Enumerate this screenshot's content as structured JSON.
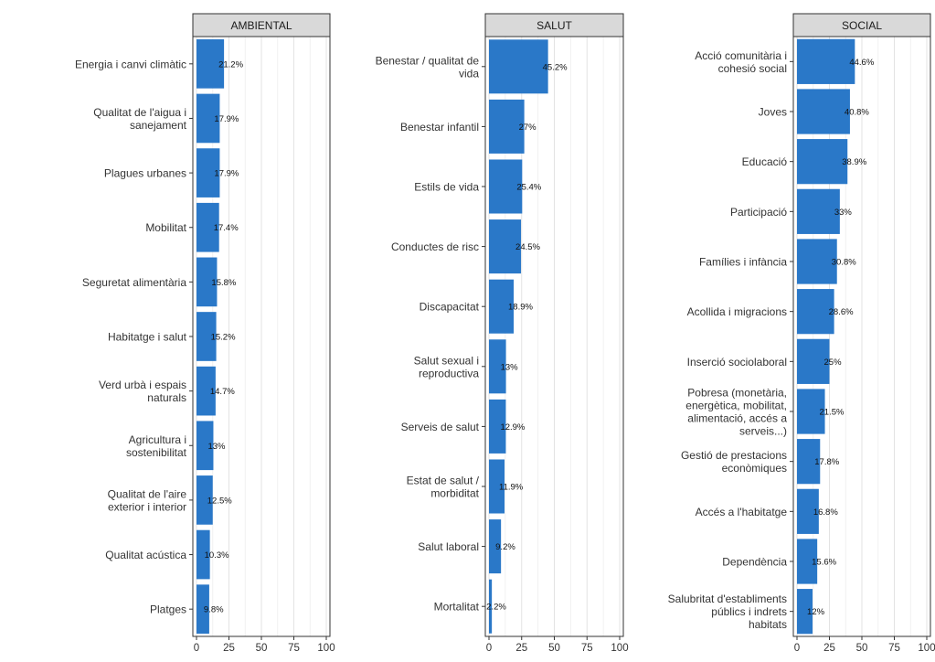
{
  "chart_data": [
    {
      "type": "bar",
      "orientation": "horizontal",
      "facet": "AMBIENTAL",
      "categories": [
        "Energia i canvi climàtic",
        "Qualitat de l'aigua i sanejament",
        "Plagues urbanes",
        "Mobilitat",
        "Seguretat alimentària",
        "Habitatge i salut",
        "Verd urbà i espais naturals",
        "Agricultura i sostenibilitat",
        "Qualitat de l'aire exterior i interior",
        "Qualitat acústica",
        "Platges"
      ],
      "category_lines": [
        [
          "Energia i canvi climàtic"
        ],
        [
          "Qualitat de l'aigua i",
          "sanejament"
        ],
        [
          "Plagues urbanes"
        ],
        [
          "Mobilitat"
        ],
        [
          "Seguretat alimentària"
        ],
        [
          "Habitatge i salut"
        ],
        [
          "Verd urbà i espais",
          "naturals"
        ],
        [
          "Agricultura i",
          "sostenibilitat"
        ],
        [
          "Qualitat de l'aire",
          "exterior i interior"
        ],
        [
          "Qualitat acústica"
        ],
        [
          "Platges"
        ]
      ],
      "values": [
        21.2,
        17.9,
        17.9,
        17.4,
        15.8,
        15.2,
        14.7,
        13,
        12.5,
        10.3,
        9.8
      ],
      "value_labels": [
        "21.2%",
        "17.9%",
        "17.9%",
        "17.4%",
        "15.8%",
        "15.2%",
        "14.7%",
        "13%",
        "12.5%",
        "10.3%",
        "9.8%"
      ],
      "xlim": [
        0,
        100
      ],
      "xticks": [
        0,
        25,
        50,
        75,
        100
      ],
      "xtick_labels": [
        "0",
        "25",
        "50",
        "75",
        "100"
      ]
    },
    {
      "type": "bar",
      "orientation": "horizontal",
      "facet": "SALUT",
      "categories": [
        "Benestar / qualitat de vida",
        "Benestar infantil",
        "Estils de vida",
        "Conductes de risc",
        "Discapacitat",
        "Salut sexual i reproductiva",
        "Serveis de salut",
        "Estat de salut / morbiditat",
        "Salut laboral",
        "Mortalitat"
      ],
      "category_lines": [
        [
          "Benestar / qualitat de",
          "vida"
        ],
        [
          "Benestar infantil"
        ],
        [
          "Estils de vida"
        ],
        [
          "Conductes de risc"
        ],
        [
          "Discapacitat"
        ],
        [
          "Salut sexual i",
          "reproductiva"
        ],
        [
          "Serveis de salut"
        ],
        [
          "Estat de salut /",
          "morbiditat"
        ],
        [
          "Salut laboral"
        ],
        [
          "Mortalitat"
        ]
      ],
      "values": [
        45.2,
        27,
        25.4,
        24.5,
        18.9,
        13,
        12.9,
        11.9,
        9.2,
        2.2
      ],
      "value_labels": [
        "45.2%",
        "27%",
        "25.4%",
        "24.5%",
        "18.9%",
        "13%",
        "12.9%",
        "11.9%",
        "9.2%",
        "2.2%"
      ],
      "xlim": [
        0,
        100
      ],
      "xticks": [
        0,
        25,
        50,
        75,
        100
      ],
      "xtick_labels": [
        "0",
        "25",
        "50",
        "75",
        "100"
      ]
    },
    {
      "type": "bar",
      "orientation": "horizontal",
      "facet": "SOCIAL",
      "categories": [
        "Acció comunitària i cohesió social",
        "Joves",
        "Educació",
        "Participació",
        "Famílies i infància",
        "Acollida i migracions",
        "Inserció sociolaboral",
        "Pobresa (monetària, energètica, mobilitat, alimentació, accés a serveis...)",
        "Gestió de prestacions econòmiques",
        "Accés a l'habitatge",
        "Dependència",
        "Salubritat d'establiments públics i indrets habitats"
      ],
      "category_lines": [
        [
          "Acció comunitària i",
          "cohesió social"
        ],
        [
          "Joves"
        ],
        [
          "Educació"
        ],
        [
          "Participació"
        ],
        [
          "Famílies i infància"
        ],
        [
          "Acollida i migracions"
        ],
        [
          "Inserció sociolaboral"
        ],
        [
          "Pobresa (monetària,",
          "energètica, mobilitat,",
          "alimentació, accés a",
          "serveis...)"
        ],
        [
          "Gestió de prestacions",
          "econòmiques"
        ],
        [
          "Accés a l'habitatge"
        ],
        [
          "Dependència"
        ],
        [
          "Salubritat d'establiments",
          "públics i indrets",
          "habitats"
        ]
      ],
      "values": [
        44.6,
        40.8,
        38.9,
        33,
        30.8,
        28.6,
        25,
        21.5,
        17.8,
        16.8,
        15.6,
        12
      ],
      "value_labels": [
        "44.6%",
        "40.8%",
        "38.9%",
        "33%",
        "30.8%",
        "28.6%",
        "25%",
        "21.5%",
        "17.8%",
        "16.8%",
        "15.6%",
        "12%"
      ],
      "xlim": [
        0,
        100
      ],
      "xticks": [
        0,
        25,
        50,
        75,
        100
      ],
      "xtick_labels": [
        "0",
        "25",
        "50",
        "75",
        "100"
      ]
    }
  ],
  "colors": {
    "bar": "#2a78c8",
    "strip_background": "#d9d9d9",
    "panel_background": "#ffffff",
    "gridline": "#e3e3e3"
  }
}
